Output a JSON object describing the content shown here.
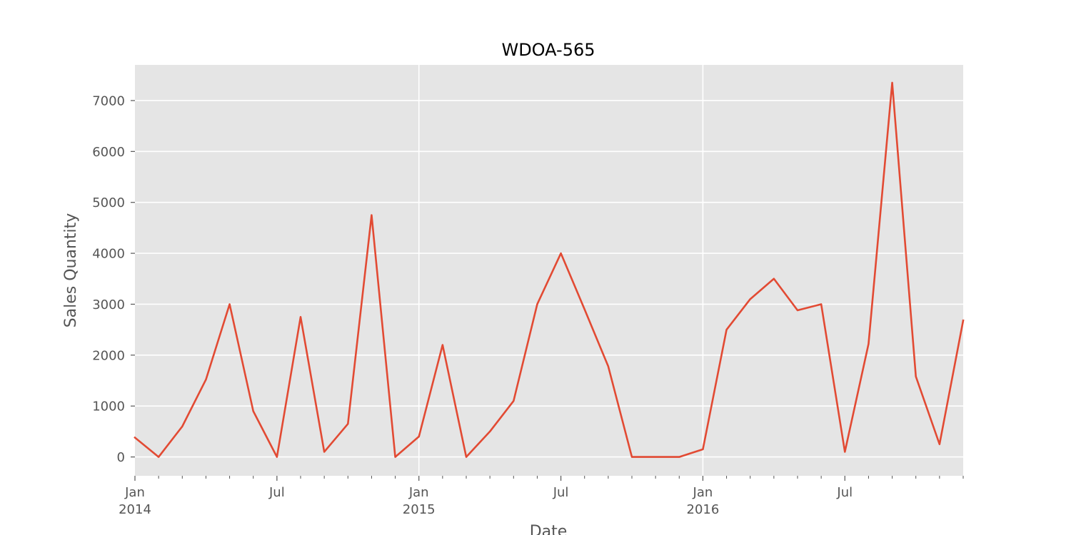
{
  "chart_data": {
    "type": "line",
    "title": "WDOA-565",
    "xlabel": "Date",
    "ylabel": "Sales Quantity",
    "ylim": [
      -370,
      7700
    ],
    "xlim": [
      "2014-01",
      "2016-12"
    ],
    "grid": true,
    "colors": {
      "line": "#e24a33",
      "plot_background": "#e5e5e5",
      "grid": "#ffffff",
      "tick_text": "#555555"
    },
    "y_ticks": [
      {
        "value": 0,
        "label": "0"
      },
      {
        "value": 1000,
        "label": "1000"
      },
      {
        "value": 2000,
        "label": "2000"
      },
      {
        "value": 3000,
        "label": "3000"
      },
      {
        "value": 4000,
        "label": "4000"
      },
      {
        "value": 5000,
        "label": "5000"
      },
      {
        "value": 6000,
        "label": "6000"
      },
      {
        "value": 7000,
        "label": "7000"
      }
    ],
    "x_major_ticks": [
      {
        "date": "2014-01",
        "label": "Jan",
        "year_label": "2014"
      },
      {
        "date": "2014-07",
        "label": "Jul",
        "year_label": ""
      },
      {
        "date": "2015-01",
        "label": "Jan",
        "year_label": "2015"
      },
      {
        "date": "2015-07",
        "label": "Jul",
        "year_label": ""
      },
      {
        "date": "2016-01",
        "label": "Jan",
        "year_label": "2016"
      },
      {
        "date": "2016-07",
        "label": "Jul",
        "year_label": ""
      }
    ],
    "x_minor_ticks": [
      "2014-02",
      "2014-03",
      "2014-04",
      "2014-05",
      "2014-06",
      "2014-08",
      "2014-09",
      "2014-10",
      "2014-11",
      "2014-12",
      "2015-02",
      "2015-03",
      "2015-04",
      "2015-05",
      "2015-06",
      "2015-08",
      "2015-09",
      "2015-10",
      "2015-11",
      "2015-12",
      "2016-02",
      "2016-03",
      "2016-04",
      "2016-05",
      "2016-06",
      "2016-08",
      "2016-09",
      "2016-10",
      "2016-11",
      "2016-12"
    ],
    "grid_x_dates": [
      "2015-01",
      "2016-01"
    ],
    "series": [
      {
        "x": [
          "2014-01",
          "2014-02",
          "2014-03",
          "2014-04",
          "2014-05",
          "2014-06",
          "2014-07",
          "2014-08",
          "2014-09",
          "2014-10",
          "2014-11",
          "2014-12",
          "2015-01",
          "2015-02",
          "2015-03",
          "2015-04",
          "2015-05",
          "2015-06",
          "2015-07",
          "2015-08",
          "2015-09",
          "2015-10",
          "2015-11",
          "2015-12",
          "2016-01",
          "2016-02",
          "2016-03",
          "2016-04",
          "2016-05",
          "2016-06",
          "2016-07",
          "2016-08",
          "2016-09",
          "2016-10",
          "2016-11",
          "2016-12"
        ],
        "values": [
          380,
          0,
          600,
          1520,
          3000,
          900,
          0,
          2750,
          100,
          650,
          4750,
          0,
          400,
          2200,
          0,
          500,
          1100,
          3000,
          4000,
          2900,
          1780,
          0,
          0,
          0,
          150,
          2500,
          3100,
          3500,
          2880,
          3000,
          100,
          2220,
          7350,
          1580,
          250,
          2680
        ]
      }
    ]
  }
}
